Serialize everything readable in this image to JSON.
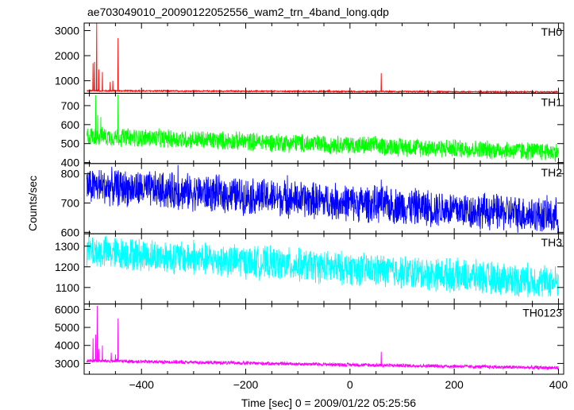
{
  "chart_data": {
    "type": "line",
    "title": "ae703049010_20090122052556_wam2_trn_4band_long.qdp",
    "xlabel": "Time [sec] 0 = 2009/01/22 05:25:56",
    "ylabel": "Counts/sec",
    "xlim": [
      -510,
      410
    ],
    "x_ticks": [
      -400,
      -200,
      0,
      200,
      400
    ],
    "x_tick_labels": [
      "−400",
      "−200",
      "0",
      "200",
      "400"
    ],
    "grid": false,
    "panels": [
      {
        "name": "TH0",
        "color": "#ff0000",
        "ylim": [
          500,
          3300
        ],
        "y_ticks": [
          1000,
          2000,
          3000
        ],
        "y_tick_labels": [
          "1000",
          "2000",
          "3000"
        ],
        "baseline_start": 600,
        "baseline_end": 550,
        "noise": 30,
        "spikes": [
          [
            -493,
            1700
          ],
          [
            -490,
            1750
          ],
          [
            -486,
            3300
          ],
          [
            -482,
            1450
          ],
          [
            -475,
            1350
          ],
          [
            -460,
            950
          ],
          [
            -455,
            1000
          ],
          [
            -445,
            2700
          ],
          [
            -40,
            650
          ],
          [
            60,
            1300
          ]
        ]
      },
      {
        "name": "TH1",
        "color": "#00ff00",
        "ylim": [
          395,
          765
        ],
        "y_ticks": [
          400,
          500,
          600,
          700
        ],
        "y_tick_labels": [
          "400",
          "500",
          "600",
          "700"
        ],
        "baseline_start": 540,
        "baseline_end": 455,
        "noise": 55,
        "spikes": [
          [
            -488,
            755
          ],
          [
            -484,
            650
          ],
          [
            -478,
            640
          ],
          [
            -445,
            758
          ]
        ]
      },
      {
        "name": "TH2",
        "color": "#0000ff",
        "ylim": [
          595,
          835
        ],
        "y_ticks": [
          600,
          700,
          800
        ],
        "y_tick_labels": [
          "600",
          "700",
          "800"
        ],
        "baseline_start": 760,
        "baseline_end": 655,
        "noise": 70,
        "spikes": [
          [
            -330,
            830
          ],
          [
            -120,
            795
          ],
          [
            60,
            780
          ]
        ]
      },
      {
        "name": "TH3",
        "color": "#00ffff",
        "ylim": [
          1020,
          1360
        ],
        "y_ticks": [
          1100,
          1200,
          1300
        ],
        "y_tick_labels": [
          "1100",
          "1200",
          "1300"
        ],
        "baseline_start": 1275,
        "baseline_end": 1125,
        "noise": 90,
        "spikes": [
          [
            -470,
            1345
          ],
          [
            -300,
            1330
          ]
        ]
      },
      {
        "name": "TH0123",
        "color": "#ff00ff",
        "ylim": [
          2400,
          6300
        ],
        "y_ticks": [
          3000,
          4000,
          5000,
          6000
        ],
        "y_tick_labels": [
          "3000",
          "4000",
          "5000",
          "6000"
        ],
        "baseline_start": 3150,
        "baseline_end": 2750,
        "noise": 110,
        "spikes": [
          [
            -493,
            4400
          ],
          [
            -488,
            4600
          ],
          [
            -485,
            6200
          ],
          [
            -482,
            3800
          ],
          [
            -475,
            4000
          ],
          [
            -458,
            3600
          ],
          [
            -450,
            3500
          ],
          [
            -445,
            5500
          ],
          [
            60,
            3650
          ]
        ]
      }
    ]
  }
}
